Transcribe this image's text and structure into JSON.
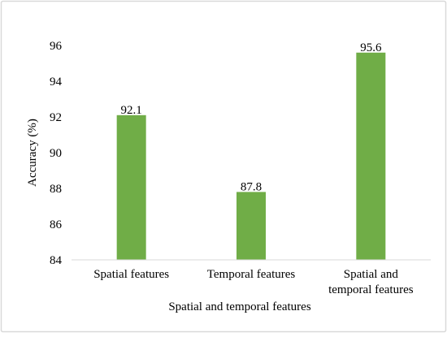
{
  "chart_data": {
    "type": "bar",
    "title": "",
    "categories": [
      [
        "Spatial features"
      ],
      [
        "Temporal features"
      ],
      [
        "Spatial and",
        "temporal features"
      ]
    ],
    "values": [
      92.1,
      87.8,
      95.6
    ],
    "data_labels": [
      "92.1",
      "87.8",
      "95.6"
    ],
    "xlabel": "Spatial and temporal features",
    "ylabel": "Accuracy (%)",
    "ylim": [
      84,
      96
    ],
    "yticks": [
      84,
      86,
      88,
      90,
      92,
      94,
      96
    ],
    "ytick_labels": [
      "84",
      "86",
      "88",
      "90",
      "92",
      "94",
      "96"
    ],
    "grid": false,
    "legend": "none",
    "bar_color": "#70ad47",
    "frame_color": "#d9d9d9"
  }
}
